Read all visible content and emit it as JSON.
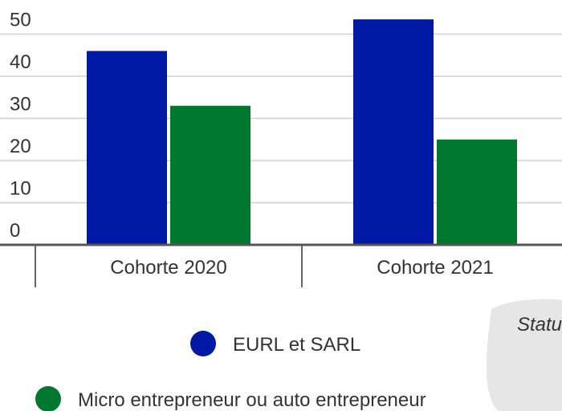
{
  "chart_data": {
    "type": "bar",
    "categories": [
      "Cohorte 2020",
      "Cohorte 2021"
    ],
    "series": [
      {
        "name": "EURL et SARL",
        "color": "#0019a5",
        "values": [
          46,
          53.5
        ]
      },
      {
        "name": "Micro entrepreneur ou auto entrepreneur",
        "color": "#00782f",
        "values": [
          33,
          25
        ]
      }
    ],
    "ylim": [
      0,
      58
    ],
    "yticks": [
      0,
      10,
      20,
      30,
      40,
      50
    ],
    "grid": true,
    "annotation": "Statu"
  }
}
